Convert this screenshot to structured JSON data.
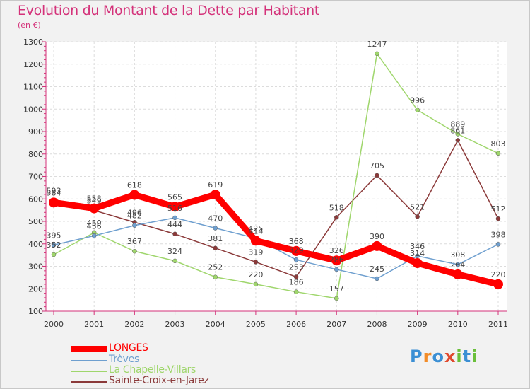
{
  "title": "Evolution du Montant de la Dette par Habitant",
  "subtitle": "(en €)",
  "logo": {
    "letters": [
      "P",
      "r",
      "o",
      "x",
      "i",
      "t",
      "i"
    ],
    "colors": [
      "#3b8fd4",
      "#f28c28",
      "#3b8fd4",
      "#e04a2f",
      "#6abf3a",
      "#3b8fd4",
      "#6abf3a"
    ]
  },
  "chart_data": {
    "type": "line",
    "x": [
      "2000",
      "2001",
      "2002",
      "2003",
      "2004",
      "2005",
      "2006",
      "2007",
      "2008",
      "2009",
      "2010",
      "2011"
    ],
    "ylim": [
      100,
      1300
    ],
    "yticks": [
      "100",
      "200",
      "300",
      "400",
      "500",
      "600",
      "700",
      "800",
      "900",
      "1000",
      "1100",
      "1200",
      "1300"
    ],
    "grid": true,
    "legend_position": "bottom-left",
    "series": [
      {
        "name": "LONGES",
        "color": "#ff0000",
        "width": 9,
        "values": [
          584,
          558,
          618,
          565,
          619,
          414,
          368,
          326,
          390,
          314,
          264,
          220
        ],
        "labels": [
          "584",
          "558",
          "618",
          "565",
          "619",
          "414",
          "368",
          "326",
          "390",
          "314",
          "264",
          "220"
        ]
      },
      {
        "name": "Trèves",
        "color": "#6e9fcf",
        "width": 1.5,
        "values": [
          395,
          436,
          482,
          516,
          470,
          425,
          329,
          286,
          245,
          346,
          308,
          398
        ],
        "labels": [
          "395",
          "436",
          "482",
          "516",
          "470",
          "425",
          "329",
          "286",
          "245",
          "346",
          "308",
          "398"
        ]
      },
      {
        "name": "La Chapelle-Villars",
        "color": "#9fd66c",
        "width": 1.5,
        "values": [
          352,
          450,
          367,
          324,
          252,
          220,
          186,
          157,
          1247,
          996,
          889,
          803
        ],
        "labels": [
          "352",
          "450",
          "367",
          "324",
          "252",
          "220",
          "186",
          "157",
          "1247",
          "996",
          "889",
          "803"
        ]
      },
      {
        "name": "Sainte-Croix-en-Jarez",
        "color": "#8b3a3a",
        "width": 1.5,
        "values": [
          593,
          549,
          496,
          444,
          381,
          319,
          253,
          518,
          705,
          521,
          861,
          512
        ],
        "labels": [
          "593",
          "549",
          "496",
          "444",
          "381",
          "319",
          "253",
          "518",
          "705",
          "521",
          "861",
          "512"
        ]
      }
    ]
  }
}
